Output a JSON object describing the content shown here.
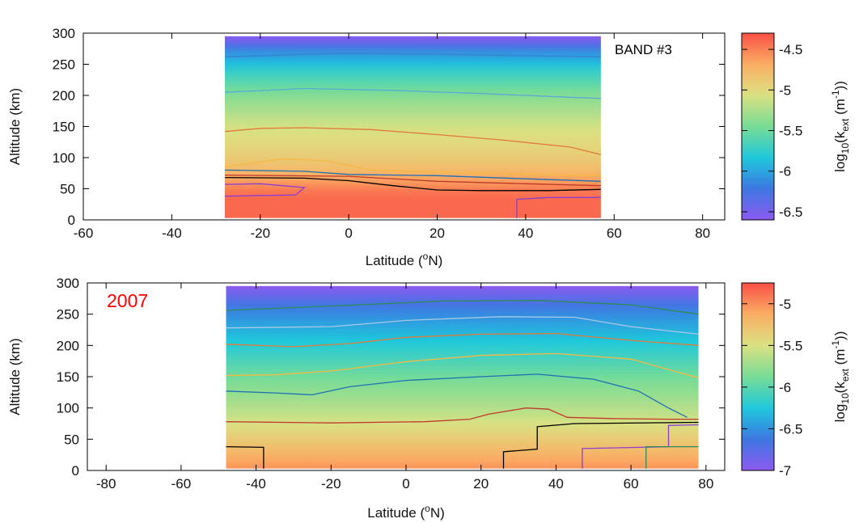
{
  "chart_data": [
    {
      "type": "heatmap",
      "annotation": "BAND #3",
      "annotation_color": "#000000",
      "xlabel": "Latitude (",
      "xlabel_sup": "o",
      "xlabel_tail": "N)",
      "ylabel": "Altitude (km)",
      "xlim": [
        -60,
        85
      ],
      "ylim": [
        0,
        300
      ],
      "xticks": [
        "-60",
        "-40",
        "-20",
        "0",
        "20",
        "40",
        "60",
        "80"
      ],
      "yticks": [
        "0",
        "50",
        "100",
        "150",
        "200",
        "250",
        "300"
      ],
      "data_extent": {
        "lat": [
          -28,
          57
        ],
        "alt": [
          3,
          295
        ]
      },
      "value_profile": {
        "alt": [
          0,
          40,
          70,
          100,
          150,
          200,
          240,
          270,
          295
        ],
        "log_kext": [
          -4.4,
          -4.4,
          -4.7,
          -4.9,
          -5.1,
          -5.4,
          -5.75,
          -6.1,
          -6.6
        ]
      },
      "contours": [
        {
          "color": "#8b3fd1",
          "points": [
            [
              -28,
              38
            ],
            [
              -12,
              40
            ],
            [
              -10,
              52
            ],
            [
              -20,
              58
            ],
            [
              -28,
              57
            ]
          ]
        },
        {
          "color": "#8b3fd1",
          "points": [
            [
              38,
              3
            ],
            [
              38,
              33
            ],
            [
              45,
              36
            ],
            [
              57,
              36
            ]
          ]
        },
        {
          "color": "#000000",
          "points": [
            [
              -28,
              68
            ],
            [
              -10,
              67
            ],
            [
              0,
              63
            ],
            [
              10,
              55
            ],
            [
              20,
              48
            ],
            [
              30,
              47
            ],
            [
              45,
              47
            ],
            [
              57,
              49
            ]
          ]
        },
        {
          "color": "#c0392b",
          "points": [
            [
              -28,
              72
            ],
            [
              0,
              70
            ],
            [
              20,
              62
            ],
            [
              40,
              58
            ],
            [
              57,
              55
            ]
          ]
        },
        {
          "color": "#1f6fb5",
          "points": [
            [
              -28,
              80
            ],
            [
              -10,
              78
            ],
            [
              0,
              73
            ],
            [
              20,
              71
            ],
            [
              40,
              66
            ],
            [
              57,
              62
            ]
          ]
        },
        {
          "color": "#f5b942",
          "points": [
            [
              -28,
              85
            ],
            [
              -15,
              98
            ],
            [
              -5,
              95
            ],
            [
              5,
              80
            ],
            [
              20,
              77
            ],
            [
              40,
              73
            ],
            [
              57,
              71
            ]
          ]
        },
        {
          "color": "#e07b3a",
          "points": [
            [
              -28,
              142
            ],
            [
              -20,
              147
            ],
            [
              -10,
              148
            ],
            [
              5,
              145
            ],
            [
              20,
              137
            ],
            [
              35,
              128
            ],
            [
              50,
              117
            ],
            [
              57,
              105
            ]
          ]
        },
        {
          "color": "#5aa9d6",
          "points": [
            [
              -28,
              205
            ],
            [
              -10,
              211
            ],
            [
              10,
              208
            ],
            [
              30,
              203
            ],
            [
              50,
              197
            ],
            [
              57,
              195
            ]
          ]
        },
        {
          "color": "#3a7fd0",
          "points": [
            [
              -28,
              262
            ],
            [
              0,
              268
            ],
            [
              30,
              265
            ],
            [
              57,
              262
            ]
          ]
        }
      ],
      "colorbar": {
        "min": -6.6,
        "max": -4.3,
        "ticks": [
          "-4.5",
          "-5",
          "-5.5",
          "-6",
          "-6.5"
        ],
        "label": "log",
        "label_sub1": "10",
        "label_mid": "(k",
        "label_sub2": "ext",
        "label_unit": " (m",
        "label_sup": "-1",
        "label_end": "))"
      }
    },
    {
      "type": "heatmap",
      "annotation": "2007",
      "annotation_color": "#ff0000",
      "xlabel": "Latitude (",
      "xlabel_sup": "o",
      "xlabel_tail": "N)",
      "ylabel": "Altitude (km)",
      "xlim": [
        -85,
        85
      ],
      "ylim": [
        0,
        300
      ],
      "xticks": [
        "-80",
        "-60",
        "-40",
        "-20",
        "0",
        "20",
        "40",
        "60",
        "80"
      ],
      "yticks": [
        "0",
        "50",
        "100",
        "150",
        "200",
        "250",
        "300"
      ],
      "data_extent": {
        "lat": [
          -48,
          78
        ],
        "alt": [
          3,
          295
        ]
      },
      "value_profile": {
        "alt": [
          0,
          30,
          60,
          90,
          120,
          150,
          190,
          230,
          260,
          295
        ],
        "log_kext": [
          -5.0,
          -5.2,
          -5.4,
          -5.6,
          -5.75,
          -5.9,
          -6.15,
          -6.4,
          -6.6,
          -7.0
        ]
      },
      "contours": [
        {
          "color": "#000000",
          "points": [
            [
              -48,
              38
            ],
            [
              -38,
              37
            ],
            [
              -38,
              3
            ]
          ]
        },
        {
          "color": "#000000",
          "points": [
            [
              26,
              3
            ],
            [
              26,
              30
            ],
            [
              35,
              34
            ],
            [
              35,
              70
            ],
            [
              45,
              75
            ],
            [
              78,
              77
            ]
          ]
        },
        {
          "color": "#8b3fd1",
          "points": [
            [
              47,
              3
            ],
            [
              47,
              35
            ],
            [
              70,
              38
            ],
            [
              70,
              72
            ],
            [
              78,
              73
            ]
          ]
        },
        {
          "color": "#2e8b57",
          "points": [
            [
              64,
              3
            ],
            [
              64,
              38
            ],
            [
              78,
              38
            ]
          ]
        },
        {
          "color": "#c0392b",
          "points": [
            [
              -48,
              78
            ],
            [
              -20,
              76
            ],
            [
              5,
              78
            ],
            [
              17,
              82
            ],
            [
              22,
              90
            ],
            [
              32,
              100
            ],
            [
              38,
              98
            ],
            [
              43,
              85
            ],
            [
              55,
              83
            ],
            [
              70,
              82
            ],
            [
              78,
              82
            ]
          ]
        },
        {
          "color": "#1f6fb5",
          "points": [
            [
              -48,
              127
            ],
            [
              -35,
              124
            ],
            [
              -25,
              121
            ],
            [
              -15,
              134
            ],
            [
              0,
              144
            ],
            [
              20,
              150
            ],
            [
              35,
              154
            ],
            [
              50,
              146
            ],
            [
              62,
              127
            ],
            [
              70,
              100
            ],
            [
              75,
              85
            ]
          ]
        },
        {
          "color": "#f5b942",
          "points": [
            [
              -48,
              152
            ],
            [
              -35,
              153
            ],
            [
              -20,
              159
            ],
            [
              0,
              174
            ],
            [
              20,
              184
            ],
            [
              40,
              187
            ],
            [
              60,
              178
            ],
            [
              78,
              148
            ]
          ]
        },
        {
          "color": "#e07b3a",
          "points": [
            [
              -48,
              202
            ],
            [
              -30,
              198
            ],
            [
              -15,
              203
            ],
            [
              0,
              213
            ],
            [
              20,
              218
            ],
            [
              40,
              219
            ],
            [
              60,
              208
            ],
            [
              78,
              200
            ]
          ]
        },
        {
          "color": "#a9c8e6",
          "points": [
            [
              -48,
              228
            ],
            [
              -20,
              230
            ],
            [
              0,
              240
            ],
            [
              25,
              246
            ],
            [
              45,
              245
            ],
            [
              60,
              230
            ],
            [
              78,
              218
            ]
          ]
        },
        {
          "color": "#2e8b57",
          "points": [
            [
              -48,
              256
            ],
            [
              -20,
              263
            ],
            [
              10,
              271
            ],
            [
              35,
              272
            ],
            [
              60,
              265
            ],
            [
              78,
              250
            ]
          ]
        }
      ],
      "colorbar": {
        "min": -7.0,
        "max": -4.75,
        "ticks": [
          "-5",
          "-5.5",
          "-6",
          "-6.5",
          "-7"
        ],
        "label": "log",
        "label_sub1": "10",
        "label_mid": "(k",
        "label_sub2": "ext",
        "label_unit": " (m",
        "label_sup": "-1",
        "label_end": "))"
      }
    }
  ]
}
